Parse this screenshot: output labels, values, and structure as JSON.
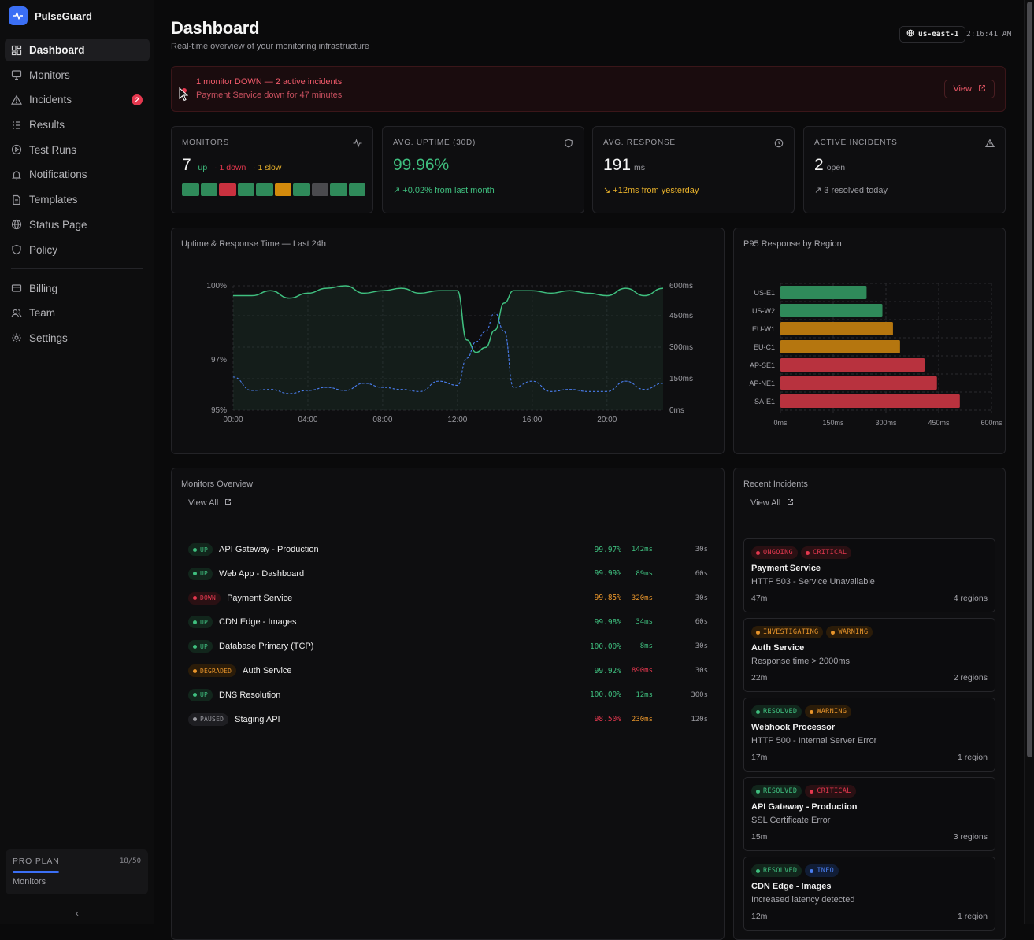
{
  "brand": {
    "name": "PulseGuard"
  },
  "sidebar": {
    "items": [
      {
        "label": "Dashboard",
        "icon": "dashboard-icon",
        "active": true
      },
      {
        "label": "Monitors",
        "icon": "monitor-icon"
      },
      {
        "label": "Incidents",
        "icon": "alert-triangle-icon",
        "badge": "2"
      },
      {
        "label": "Results",
        "icon": "list-icon"
      },
      {
        "label": "Test Runs",
        "icon": "play-circle-icon"
      },
      {
        "label": "Notifications",
        "icon": "bell-icon"
      },
      {
        "label": "Templates",
        "icon": "file-icon"
      },
      {
        "label": "Status Page",
        "icon": "globe-icon"
      },
      {
        "label": "Policy",
        "icon": "shield-icon"
      }
    ],
    "items2": [
      {
        "label": "Billing",
        "icon": "credit-card-icon"
      },
      {
        "label": "Team",
        "icon": "users-icon"
      },
      {
        "label": "Settings",
        "icon": "gear-icon"
      }
    ],
    "plan": {
      "title": "PRO PLAN",
      "count": "18/50",
      "label": "Monitors",
      "used_fraction": 0.36
    },
    "collapse_glyph": "‹"
  },
  "header": {
    "title": "Dashboard",
    "subtitle": "Real-time overview of your monitoring infrastructure",
    "region": "us-east-1",
    "time": "2:16:41 AM"
  },
  "alert": {
    "title": "1 monitor DOWN — 2 active incidents",
    "text": "Payment Service down for 47 minutes",
    "button": "View"
  },
  "stats": {
    "monitors": {
      "label": "MONITORS",
      "value": "7",
      "up": "up",
      "down": "· 1 down",
      "slow": "· 1 slow",
      "segments": [
        "#2f8a5a",
        "#2f8a5a",
        "#c9313f",
        "#2f8a5a",
        "#2f8a5a",
        "#d38a0c",
        "#2f8a5a",
        "#4a4a4e",
        "#2f8a5a",
        "#2f8a5a"
      ]
    },
    "uptime": {
      "label": "AVG. UPTIME (30D)",
      "value": "99.96%",
      "sub": "+0.02% from last month"
    },
    "response": {
      "label": "AVG. RESPONSE",
      "value": "191",
      "unit": "ms",
      "sub": "+12ms from yesterday"
    },
    "incidents": {
      "label": "ACTIVE INCIDENTS",
      "value": "2",
      "unit": "open",
      "sub": "3 resolved today"
    }
  },
  "chart_uptime": {
    "title": "Uptime & Response Time — Last 24h",
    "chart_data": {
      "type": "line",
      "x_ticks": [
        "00:00",
        "04:00",
        "08:00",
        "12:00",
        "16:00",
        "20:00"
      ],
      "y_left_ticks": [
        "100%",
        "97%",
        "95%"
      ],
      "y_right_ticks": [
        "600ms",
        "450ms",
        "300ms",
        "150ms",
        "0ms"
      ],
      "x_hours": [
        0,
        1,
        2,
        3,
        4,
        5,
        6,
        7,
        8,
        9,
        10,
        11,
        12,
        12.5,
        13,
        13.5,
        14,
        14.5,
        15,
        16,
        17,
        18,
        19,
        20,
        21,
        22,
        23
      ],
      "uptime": [
        99.6,
        99.6,
        99.8,
        99.5,
        99.7,
        99.9,
        100,
        99.7,
        99.8,
        99.9,
        99.7,
        99.8,
        99.8,
        97.8,
        97.3,
        97.5,
        98.2,
        99.3,
        99.8,
        99.8,
        99.7,
        99.8,
        99.7,
        99.6,
        99.9,
        99.6,
        99.9
      ],
      "response_ms": [
        160,
        95,
        100,
        80,
        95,
        110,
        95,
        130,
        110,
        100,
        90,
        140,
        120,
        250,
        330,
        380,
        470,
        380,
        110,
        140,
        90,
        100,
        90,
        90,
        140,
        100,
        130
      ]
    }
  },
  "chart_region": {
    "title": "P95 Response by Region",
    "chart_data": {
      "type": "bar",
      "categories": [
        "US-E1",
        "US-W2",
        "EU-W1",
        "EU-C1",
        "AP-SE1",
        "AP-NE1",
        "SA-E1"
      ],
      "values": [
        245,
        290,
        320,
        340,
        410,
        445,
        510
      ],
      "colors": [
        "#2f8a5a",
        "#2f8a5a",
        "#b5760f",
        "#b5760f",
        "#b8323e",
        "#b8323e",
        "#b8323e"
      ],
      "x_ticks": [
        "0ms",
        "150ms",
        "300ms",
        "450ms",
        "600ms"
      ],
      "xlim": [
        0,
        600
      ]
    }
  },
  "monitors_overview": {
    "title": "Monitors Overview",
    "view_all": "View All",
    "rows": [
      {
        "status": "UP",
        "name": "API Gateway - Production",
        "uptime": "99.97%",
        "ms": "142ms",
        "interval": "30s",
        "kind": "up",
        "ms_color": "#3fbf7f",
        "up_color": "#3fbf7f"
      },
      {
        "status": "UP",
        "name": "Web App - Dashboard",
        "uptime": "99.99%",
        "ms": "89ms",
        "interval": "60s",
        "kind": "up",
        "ms_color": "#3fbf7f",
        "up_color": "#3fbf7f"
      },
      {
        "status": "DOWN",
        "name": "Payment Service",
        "uptime": "99.85%",
        "ms": "320ms",
        "interval": "30s",
        "kind": "down",
        "ms_color": "#e8952b",
        "up_color": "#e8952b"
      },
      {
        "status": "UP",
        "name": "CDN Edge - Images",
        "uptime": "99.98%",
        "ms": "34ms",
        "interval": "60s",
        "kind": "up",
        "ms_color": "#3fbf7f",
        "up_color": "#3fbf7f"
      },
      {
        "status": "UP",
        "name": "Database Primary (TCP)",
        "uptime": "100.00%",
        "ms": "8ms",
        "interval": "30s",
        "kind": "up",
        "ms_color": "#3fbf7f",
        "up_color": "#3fbf7f"
      },
      {
        "status": "DEGRADED",
        "name": "Auth Service",
        "uptime": "99.92%",
        "ms": "890ms",
        "interval": "30s",
        "kind": "degraded",
        "ms_color": "#e5384f",
        "up_color": "#3fbf7f"
      },
      {
        "status": "UP",
        "name": "DNS Resolution",
        "uptime": "100.00%",
        "ms": "12ms",
        "interval": "300s",
        "kind": "up",
        "ms_color": "#3fbf7f",
        "up_color": "#3fbf7f"
      },
      {
        "status": "PAUSED",
        "name": "Staging API",
        "uptime": "98.50%",
        "ms": "230ms",
        "interval": "120s",
        "kind": "paused",
        "ms_color": "#e8952b",
        "up_color": "#e5384f"
      }
    ]
  },
  "recent_incidents": {
    "title": "Recent Incidents",
    "view_all": "View All",
    "items": [
      {
        "tags": [
          {
            "label": "ONGOING",
            "kind": "red"
          },
          {
            "label": "CRITICAL",
            "kind": "red"
          }
        ],
        "name": "Payment Service",
        "desc": "HTTP 503 - Service Unavailable",
        "dur": "47m",
        "regions": "4 regions"
      },
      {
        "tags": [
          {
            "label": "INVESTIGATING",
            "kind": "amber"
          },
          {
            "label": "WARNING",
            "kind": "amber"
          }
        ],
        "name": "Auth Service",
        "desc": "Response time > 2000ms",
        "dur": "22m",
        "regions": "2 regions"
      },
      {
        "tags": [
          {
            "label": "RESOLVED",
            "kind": "green"
          },
          {
            "label": "WARNING",
            "kind": "amber"
          }
        ],
        "name": "Webhook Processor",
        "desc": "HTTP 500 - Internal Server Error",
        "dur": "17m",
        "regions": "1 region"
      },
      {
        "tags": [
          {
            "label": "RESOLVED",
            "kind": "green"
          },
          {
            "label": "CRITICAL",
            "kind": "red"
          }
        ],
        "name": "API Gateway - Production",
        "desc": "SSL Certificate Error",
        "dur": "15m",
        "regions": "3 regions"
      },
      {
        "tags": [
          {
            "label": "RESOLVED",
            "kind": "green"
          },
          {
            "label": "INFO",
            "kind": "blue"
          }
        ],
        "name": "CDN Edge - Images",
        "desc": "Increased latency detected",
        "dur": "12m",
        "regions": "1 region"
      }
    ]
  },
  "colors": {
    "accent": "#3b6ff5",
    "green": "#3fbf7f",
    "red": "#e5384f",
    "amber": "#e8952b"
  }
}
